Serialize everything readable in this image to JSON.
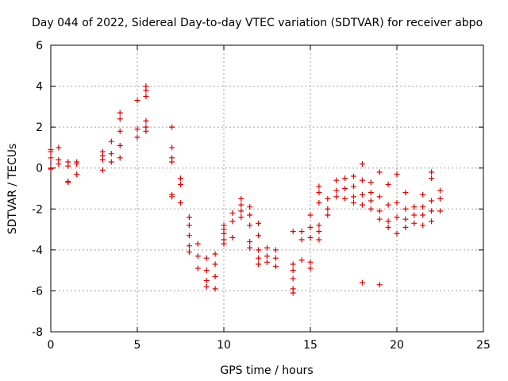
{
  "chart_data": {
    "type": "scatter",
    "title": "Day 044 of 2022, Sidereal Day-to-day VTEC variation (SDTVAR) for receiver abpo",
    "xlabel": "GPS time / hours",
    "ylabel": "SDTVAR / TECUs",
    "xlim": [
      0,
      25
    ],
    "ylim": [
      -8,
      6
    ],
    "xticks": [
      0,
      5,
      10,
      15,
      20,
      25
    ],
    "yticks": [
      -8,
      -6,
      -4,
      -2,
      0,
      2,
      4,
      6
    ],
    "grid": true,
    "marker": "plus",
    "color": "#e00000",
    "clusters": [
      {
        "x": 0.0,
        "y": [
          0.9,
          0.8,
          0.5,
          0.0,
          -0.05
        ]
      },
      {
        "x": 0.45,
        "y": [
          1.0,
          0.4,
          0.2
        ]
      },
      {
        "x": 1.0,
        "y": [
          0.3,
          0.1,
          -0.65,
          -0.7
        ]
      },
      {
        "x": 1.5,
        "y": [
          0.3,
          0.2,
          -0.3
        ]
      },
      {
        "x": 3.0,
        "y": [
          0.8,
          0.6,
          0.4,
          -0.1
        ]
      },
      {
        "x": 3.5,
        "y": [
          1.3,
          0.7,
          0.3
        ]
      },
      {
        "x": 4.0,
        "y": [
          2.7,
          2.4,
          1.8,
          1.1,
          0.5
        ]
      },
      {
        "x": 5.0,
        "y": [
          3.3,
          1.9,
          1.5
        ]
      },
      {
        "x": 5.5,
        "y": [
          4.0,
          3.8,
          3.5,
          2.3,
          2.0,
          1.8
        ]
      },
      {
        "x": 7.0,
        "y": [
          2.0,
          1.0,
          0.5,
          0.3,
          -1.3,
          -1.4
        ]
      },
      {
        "x": 7.5,
        "y": [
          -0.5,
          -0.8,
          -1.7
        ]
      },
      {
        "x": 8.0,
        "y": [
          -2.4,
          -2.8,
          -3.3,
          -3.8,
          -4.1
        ]
      },
      {
        "x": 8.5,
        "y": [
          -3.7,
          -4.3,
          -4.9
        ]
      },
      {
        "x": 9.0,
        "y": [
          -4.4,
          -5.0,
          -5.5,
          -5.8
        ]
      },
      {
        "x": 9.5,
        "y": [
          -4.2,
          -4.7,
          -5.3,
          -5.9
        ]
      },
      {
        "x": 10.0,
        "y": [
          -2.8,
          -3.0,
          -3.2,
          -3.5,
          -3.7
        ]
      },
      {
        "x": 10.5,
        "y": [
          -2.2,
          -2.6,
          -3.4
        ]
      },
      {
        "x": 11.0,
        "y": [
          -1.5,
          -1.8,
          -2.1,
          -2.4
        ]
      },
      {
        "x": 11.5,
        "y": [
          -1.9,
          -2.3,
          -2.8,
          -3.6,
          -3.9
        ]
      },
      {
        "x": 12.0,
        "y": [
          -2.7,
          -3.3,
          -4.0,
          -4.4,
          -4.7
        ]
      },
      {
        "x": 12.5,
        "y": [
          -3.9,
          -4.3,
          -4.6
        ]
      },
      {
        "x": 13.0,
        "y": [
          -4.0,
          -4.4,
          -4.8
        ]
      },
      {
        "x": 14.0,
        "y": [
          -3.1,
          -4.7,
          -5.0,
          -5.4,
          -5.9,
          -6.1
        ]
      },
      {
        "x": 14.5,
        "y": [
          -3.1,
          -3.5,
          -4.5
        ]
      },
      {
        "x": 15.0,
        "y": [
          -2.3,
          -2.9,
          -3.4,
          -4.6,
          -4.9
        ]
      },
      {
        "x": 15.5,
        "y": [
          -0.9,
          -1.2,
          -1.7,
          -2.8,
          -3.1,
          -3.5
        ]
      },
      {
        "x": 16.0,
        "y": [
          -1.5,
          -2.0,
          -2.3
        ]
      },
      {
        "x": 16.5,
        "y": [
          -0.6,
          -1.1,
          -1.4
        ]
      },
      {
        "x": 17.0,
        "y": [
          -0.5,
          -1.0,
          -1.5
        ]
      },
      {
        "x": 17.5,
        "y": [
          -0.4,
          -0.9,
          -1.4,
          -1.7
        ]
      },
      {
        "x": 18.0,
        "y": [
          0.2,
          -0.6,
          -1.3,
          -1.8,
          -5.6
        ]
      },
      {
        "x": 18.5,
        "y": [
          -0.7,
          -1.2,
          -1.6,
          -2.0
        ]
      },
      {
        "x": 19.0,
        "y": [
          -0.2,
          -1.4,
          -2.1,
          -2.5,
          -5.7
        ]
      },
      {
        "x": 19.5,
        "y": [
          -0.8,
          -1.8,
          -2.6,
          -2.9
        ]
      },
      {
        "x": 20.0,
        "y": [
          -0.3,
          -1.7,
          -2.4,
          -3.2
        ]
      },
      {
        "x": 20.5,
        "y": [
          -1.2,
          -2.0,
          -2.5,
          -2.9
        ]
      },
      {
        "x": 21.0,
        "y": [
          -1.9,
          -2.3,
          -2.7
        ]
      },
      {
        "x": 21.5,
        "y": [
          -1.3,
          -1.9,
          -2.3,
          -2.8
        ]
      },
      {
        "x": 22.0,
        "y": [
          -0.2,
          -0.5,
          -1.6,
          -2.1,
          -2.6
        ]
      },
      {
        "x": 22.5,
        "y": [
          -1.1,
          -1.5,
          -2.1
        ]
      }
    ]
  }
}
